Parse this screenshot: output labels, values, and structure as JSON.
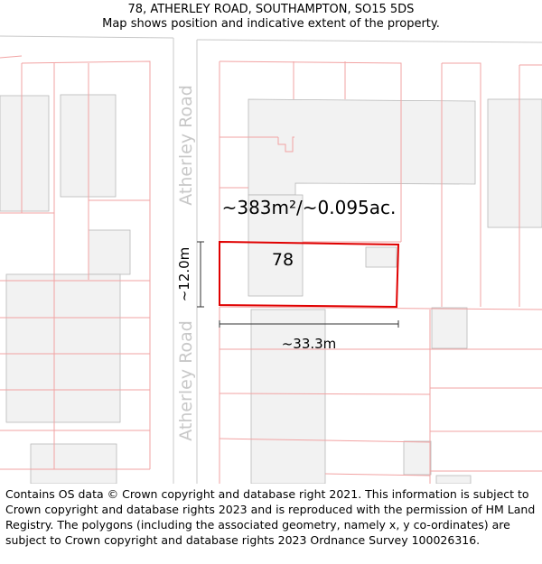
{
  "header": {
    "address": "78, ATHERLEY ROAD, SOUTHAMPTON, SO15 5DS",
    "subtitle": "Map shows position and indicative extent of the property."
  },
  "map": {
    "road_name": "Atherley Road",
    "plot_label": "78",
    "area_label": "~383m²/~0.095ac.",
    "width_label": "~33.3m",
    "height_label": "~12.0m",
    "colors": {
      "building_fill": "#f2f2f2",
      "building_stroke": "#b8b8b8",
      "parcel_stroke": "#f2a3a3",
      "highlight": "#e00000",
      "road_edge": "#c8c8c8",
      "road_label": "#c8c8c8"
    }
  },
  "footer": {
    "attribution": "Contains OS data © Crown copyright and database right 2021. This information is subject to Crown copyright and database rights 2023 and is reproduced with the permission of HM Land Registry. The polygons (including the associated geometry, namely x, y co-ordinates) are subject to Crown copyright and database rights 2023 Ordnance Survey 100026316."
  }
}
